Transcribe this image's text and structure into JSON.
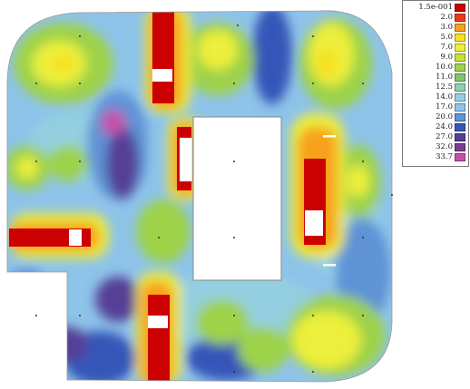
{
  "legend": {
    "entries": [
      {
        "label": "1.5e-001",
        "color": "#cc0000"
      },
      {
        "label": "2.0",
        "color": "#ee3a18"
      },
      {
        "label": "3.0",
        "color": "#f7a21c"
      },
      {
        "label": "5.0",
        "color": "#f6e020"
      },
      {
        "label": "7.0",
        "color": "#ecef3a"
      },
      {
        "label": "9.0",
        "color": "#c6df3a"
      },
      {
        "label": "10.0",
        "color": "#9dd24a"
      },
      {
        "label": "11.0",
        "color": "#7cc66e"
      },
      {
        "label": "12.5",
        "color": "#8ecfae"
      },
      {
        "label": "14.0",
        "color": "#93cfe0"
      },
      {
        "label": "17.0",
        "color": "#8ec3ea"
      },
      {
        "label": "20.0",
        "color": "#5e93d6"
      },
      {
        "label": "24.0",
        "color": "#3657b8"
      },
      {
        "label": "27.0",
        "color": "#553f96"
      },
      {
        "label": "32.0",
        "color": "#7b3f92"
      },
      {
        "label": "33.7",
        "color": "#c550a8"
      }
    ]
  }
}
